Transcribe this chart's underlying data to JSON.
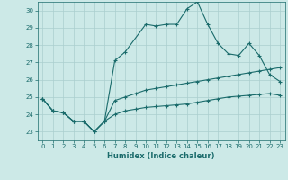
{
  "xlabel": "Humidex (Indice chaleur)",
  "xlim": [
    -0.5,
    23.5
  ],
  "ylim": [
    22.5,
    30.5
  ],
  "yticks": [
    23,
    24,
    25,
    26,
    27,
    28,
    29,
    30
  ],
  "xticks": [
    0,
    1,
    2,
    3,
    4,
    5,
    6,
    7,
    8,
    9,
    10,
    11,
    12,
    13,
    14,
    15,
    16,
    17,
    18,
    19,
    20,
    21,
    22,
    23
  ],
  "bg_color": "#cce9e7",
  "line_color": "#1a6b6b",
  "grid_color": "#aacece",
  "line1_x": [
    0,
    1,
    2,
    3,
    4,
    5,
    6,
    7,
    8,
    10,
    11,
    12,
    13,
    14,
    15,
    16,
    17,
    18,
    19,
    20,
    21,
    22,
    23
  ],
  "line1_y": [
    24.9,
    24.2,
    24.1,
    23.6,
    23.6,
    23.0,
    23.6,
    27.1,
    27.6,
    29.2,
    29.1,
    29.2,
    29.2,
    30.1,
    30.5,
    29.2,
    28.1,
    27.5,
    27.4,
    28.1,
    27.4,
    26.3,
    25.9
  ],
  "line2_x": [
    0,
    1,
    2,
    3,
    4,
    5,
    6,
    7,
    8,
    9,
    10,
    11,
    12,
    13,
    14,
    15,
    16,
    17,
    18,
    19,
    20,
    21,
    22,
    23
  ],
  "line2_y": [
    24.9,
    24.2,
    24.1,
    23.6,
    23.6,
    23.0,
    23.6,
    24.8,
    25.0,
    25.2,
    25.4,
    25.5,
    25.6,
    25.7,
    25.8,
    25.9,
    26.0,
    26.1,
    26.2,
    26.3,
    26.4,
    26.5,
    26.6,
    26.7
  ],
  "line3_x": [
    0,
    1,
    2,
    3,
    4,
    5,
    6,
    7,
    8,
    9,
    10,
    11,
    12,
    13,
    14,
    15,
    16,
    17,
    18,
    19,
    20,
    21,
    22,
    23
  ],
  "line3_y": [
    24.9,
    24.2,
    24.1,
    23.6,
    23.6,
    23.0,
    23.6,
    24.0,
    24.2,
    24.3,
    24.4,
    24.45,
    24.5,
    24.55,
    24.6,
    24.7,
    24.8,
    24.9,
    25.0,
    25.05,
    25.1,
    25.15,
    25.2,
    25.1
  ]
}
